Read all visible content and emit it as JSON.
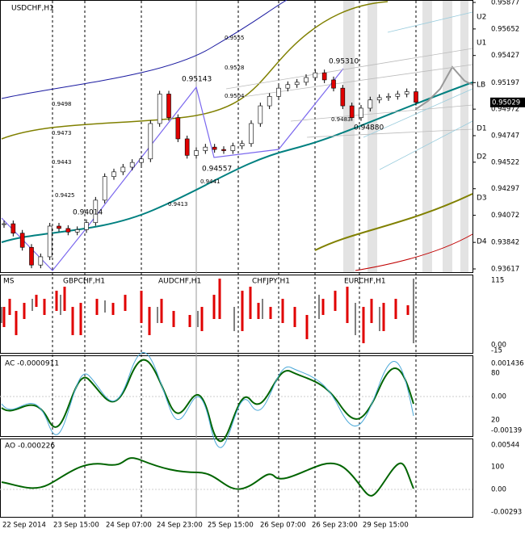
{
  "main": {
    "title": "USDCHF,H1",
    "price_ticks": [
      0.95877,
      0.95652,
      0.95427,
      0.95197,
      0.94972,
      0.94747,
      0.94522,
      0.94297,
      0.94072,
      0.93842,
      0.93617
    ],
    "price_range": [
      0.93617,
      0.95877
    ],
    "current_price": 0.95029,
    "closes": [
      0.94,
      0.9392,
      0.938,
      0.9365,
      0.9372,
      0.9398,
      0.9396,
      0.9393,
      0.9395,
      0.9401,
      0.942,
      0.944,
      0.9444,
      0.9448,
      0.9452,
      0.9455,
      0.9485,
      0.951,
      0.949,
      0.9472,
      0.9458,
      0.9462,
      0.9465,
      0.9463,
      0.9462,
      0.9466,
      0.9468,
      0.9485,
      0.95,
      0.9508,
      0.9515,
      0.9518,
      0.952,
      0.9524,
      0.9528,
      0.9522,
      0.9515,
      0.95,
      0.949,
      0.9498,
      0.9505,
      0.9507,
      0.9508,
      0.951,
      0.9512,
      0.9503
    ],
    "levels": [
      "U2",
      "U1",
      "LB",
      "D1",
      "D2",
      "D3",
      "D4"
    ],
    "annotations": [
      "0.95310",
      "0.95143",
      "0.94014",
      "0.94557",
      "0.94880"
    ],
    "level_values": [
      "0.9555",
      "0.9528",
      "0.9504",
      "0.9498",
      "0.9473",
      "0.9443",
      "0.9441",
      "0.9425",
      "0.9413",
      "0.9483"
    ]
  },
  "symbols_panel": {
    "labels": [
      "MS",
      "GBPCHF,H1",
      "AUDCHF,H1",
      "CHFJPY,H1",
      "EURCHF,H1"
    ],
    "scale": [
      "115",
      "0.00",
      "-15"
    ]
  },
  "ac_panel": {
    "label": "AC -0.0000911",
    "scale": [
      "0.001436",
      "80",
      "0.00",
      "20",
      "-0.00139"
    ]
  },
  "ao_panel": {
    "label": "AO -0.000226",
    "scale": [
      "0.00544",
      "100",
      "0.00",
      "-0.00293"
    ]
  },
  "time_axis": [
    "22 Sep 2014",
    "23 Sep 15:00",
    "24 Sep 07:00",
    "24 Sep 23:00",
    "25 Sep 15:00",
    "26 Sep 07:00",
    "26 Sep 23:00",
    "29 Sep 15:00"
  ]
}
